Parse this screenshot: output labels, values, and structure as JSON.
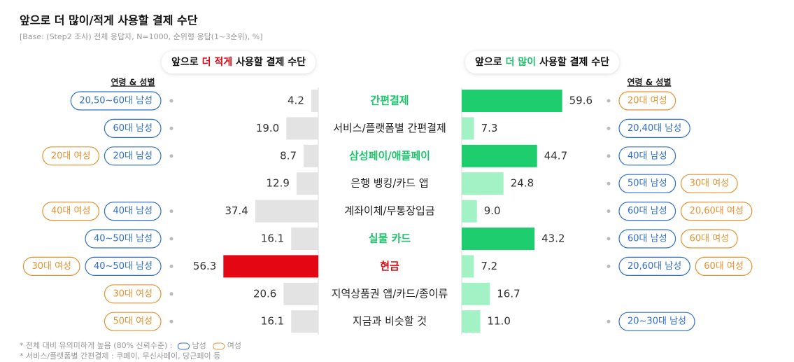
{
  "chart_data": {
    "type": "diverging-bar",
    "title": "앞으로 더 많이/적게 사용할 결제 수단",
    "subtitle": "[Base: (Step2 조사) 전체 응답자, N=1000, 순위형 응답(1~3순위), %]",
    "categories": [
      "간편결제",
      "서비스/플랫폼별 간편결제",
      "삼성페이/애플페이",
      "은행 뱅킹/카드 앱",
      "계좌이체/무통장입금",
      "실물 카드",
      "현금",
      "지역상품권 앱/카드/종이류",
      "지금과 비슷할 것"
    ],
    "category_colors": [
      "#1ec46b",
      "#222222",
      "#1ec46b",
      "#222222",
      "#222222",
      "#1ec46b",
      "#e30613",
      "#222222",
      "#222222"
    ],
    "less": {
      "title": [
        "앞으로",
        "더 적게",
        "사용할 결제 수단"
      ],
      "title_emphasis_color": "#e30613",
      "values": [
        4.2,
        19.0,
        8.7,
        12.9,
        37.4,
        16.1,
        56.3,
        20.6,
        16.1
      ],
      "value_labels": [
        "4.2",
        "19.0",
        "8.7",
        "12.9",
        "37.4",
        "16.1",
        "56.3",
        "20.6",
        "16.1"
      ],
      "colors": [
        "#e3e3e3",
        "#e3e3e3",
        "#e3e3e3",
        "#e3e3e3",
        "#e3e3e3",
        "#e3e3e3",
        "#e30613",
        "#e3e3e3",
        "#e3e3e3"
      ],
      "tags_title": "연령 & 성별",
      "tags": [
        [
          {
            "label": "20,50~60대 남성",
            "group": "male"
          }
        ],
        [
          {
            "label": "60대 남성",
            "group": "male"
          }
        ],
        [
          {
            "label": "20대 여성",
            "group": "female"
          },
          {
            "label": "20대 남성",
            "group": "male"
          }
        ],
        [],
        [
          {
            "label": "40대 여성",
            "group": "female"
          },
          {
            "label": "40대 남성",
            "group": "male"
          }
        ],
        [
          {
            "label": "40~50대 남성",
            "group": "male"
          }
        ],
        [
          {
            "label": "30대 여성",
            "group": "female"
          },
          {
            "label": "40~50대 남성",
            "group": "male"
          }
        ],
        [
          {
            "label": "30대 여성",
            "group": "female"
          }
        ],
        [
          {
            "label": "50대 여성",
            "group": "female"
          }
        ]
      ]
    },
    "more": {
      "title": [
        "앞으로",
        "더 많이",
        "사용할 결제 수단"
      ],
      "title_emphasis_color": "#1ec46b",
      "values": [
        59.6,
        7.3,
        44.7,
        24.8,
        9.0,
        43.2,
        7.2,
        16.7,
        11.0
      ],
      "value_labels": [
        "59.6",
        "7.3",
        "44.7",
        "24.8",
        "9.0",
        "43.2",
        "7.2",
        "16.7",
        "11.0"
      ],
      "colors": [
        "#1ecd6e",
        "#a3f2c6",
        "#1ecd6e",
        "#a3f2c6",
        "#a3f2c6",
        "#1ecd6e",
        "#a3f2c6",
        "#a3f2c6",
        "#a3f2c6"
      ],
      "tags_title": "연령 & 성별",
      "tags": [
        [
          {
            "label": "20대 여성",
            "group": "female"
          }
        ],
        [
          {
            "label": "20,40대 남성",
            "group": "male"
          }
        ],
        [
          {
            "label": "40대 남성",
            "group": "male"
          }
        ],
        [
          {
            "label": "50대 남성",
            "group": "male"
          },
          {
            "label": "30대 여성",
            "group": "female"
          }
        ],
        [
          {
            "label": "60대 남성",
            "group": "male"
          },
          {
            "label": "20,60대 여성",
            "group": "female"
          }
        ],
        [
          {
            "label": "60대 남성",
            "group": "male"
          },
          {
            "label": "60대 여성",
            "group": "female"
          }
        ],
        [
          {
            "label": "20,60대 남성",
            "group": "male"
          },
          {
            "label": "60대 여성",
            "group": "female"
          }
        ],
        [],
        [
          {
            "label": "20~30대 남성",
            "group": "male"
          }
        ]
      ]
    },
    "legend": {
      "note": "* 전체 대비 유의미하게 높음 (80% 신뢰수준) :",
      "male": {
        "label": "남성",
        "color": "#2f6fd0"
      },
      "female": {
        "label": "여성",
        "color": "#e8912f"
      }
    },
    "footnote": "* 서비스/플랫폼별 간편결제 : 쿠페이, 무신사페이, 당근페이 등"
  }
}
